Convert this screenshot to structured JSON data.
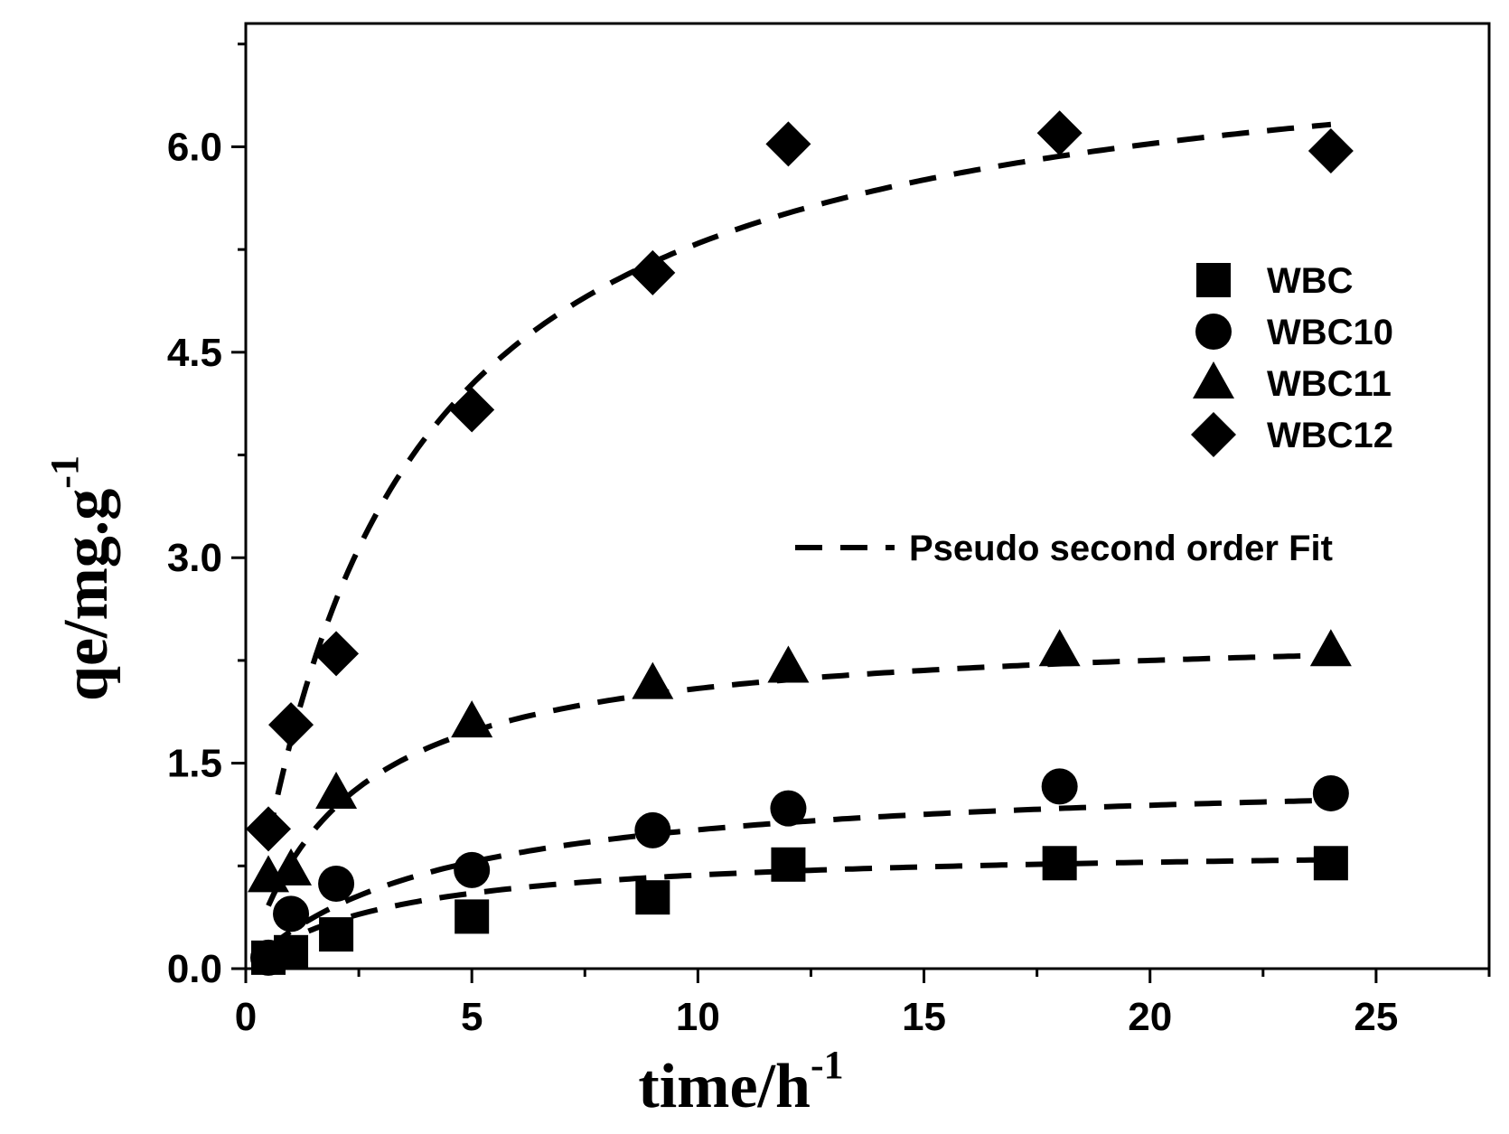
{
  "chart_data": {
    "type": "scatter",
    "xlabel": "time/h",
    "xlabel_sup": "-1",
    "ylabel": "qe/mg.g",
    "ylabel_sup": "-1",
    "xlim": [
      0,
      27.5
    ],
    "ylim": [
      0,
      6.9
    ],
    "xticks": [
      0,
      5,
      10,
      15,
      20,
      25
    ],
    "xtick_labels": [
      "0",
      "5",
      "10",
      "15",
      "20",
      "25"
    ],
    "yticks": [
      0,
      1.5,
      3,
      4.5,
      6
    ],
    "ytick_labels": [
      "0.0",
      "1.5",
      "3.0",
      "4.5",
      "6.0"
    ],
    "x": [
      0.5,
      1,
      2,
      5,
      9,
      12,
      18,
      24
    ],
    "series": [
      {
        "name": "WBC",
        "marker": "square",
        "values": [
          0.08,
          0.12,
          0.25,
          0.38,
          0.52,
          0.76,
          0.77,
          0.77
        ],
        "fit": {
          "qe": 0.9,
          "k": 0.35
        }
      },
      {
        "name": "WBC10",
        "marker": "circle",
        "values": [
          0.08,
          0.4,
          0.62,
          0.72,
          1.01,
          1.17,
          1.33,
          1.28
        ],
        "fit": {
          "qe": 1.45,
          "k": 0.16
        }
      },
      {
        "name": "WBC11",
        "marker": "triangle",
        "values": [
          0.67,
          0.72,
          1.28,
          1.8,
          2.08,
          2.2,
          2.32,
          2.32
        ],
        "fit": {
          "qe": 2.5,
          "k": 0.18
        }
      },
      {
        "name": "WBC12",
        "marker": "diamond",
        "values": [
          1.02,
          1.78,
          2.3,
          4.08,
          5.08,
          6.02,
          6.1,
          5.97
        ],
        "fit": {
          "qe": 6.98,
          "k": 0.045
        }
      }
    ],
    "fit_legend": "Pseudo second order Fit",
    "legend_position": "right",
    "colors": {
      "marker": "#000000",
      "line": "#000000",
      "background": "#ffffff"
    }
  }
}
